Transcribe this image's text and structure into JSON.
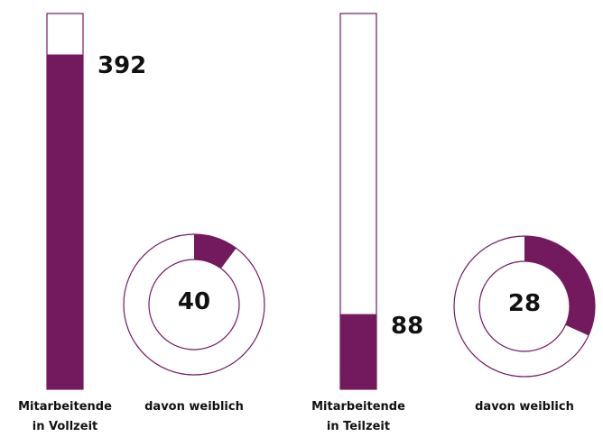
{
  "chart_data": [
    {
      "type": "bar",
      "categories": [
        "Mitarbeitende in Vollzeit",
        "Mitarbeitende in Teilzeit"
      ],
      "values": [
        392,
        88
      ],
      "ylim": [
        0,
        440
      ],
      "color": "#731a5f"
    },
    {
      "type": "donut",
      "categories": [
        "davon weiblich",
        "davon weiblich"
      ],
      "values": [
        40,
        28
      ],
      "color": "#731a5f"
    }
  ]
}
